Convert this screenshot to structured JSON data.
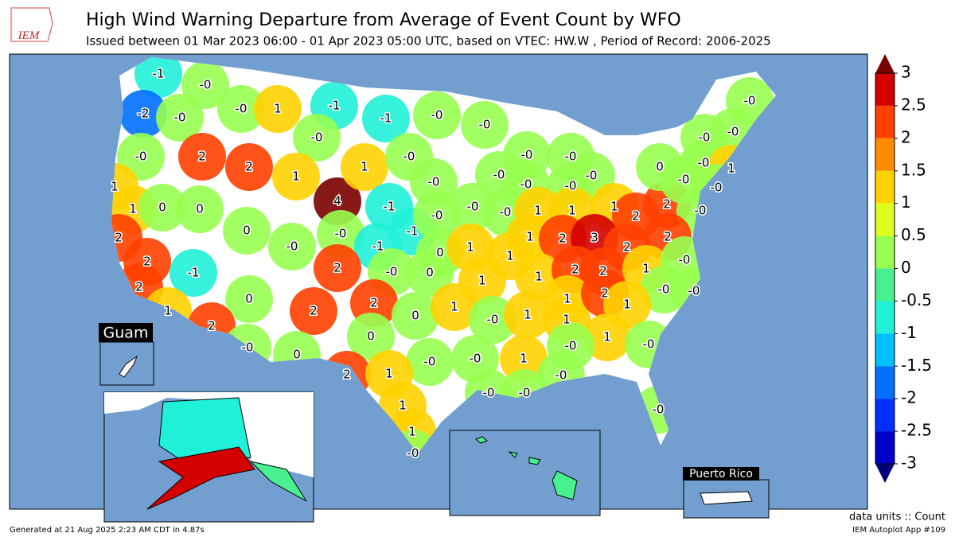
{
  "header": {
    "logo": "IEM",
    "title": "High Wind Warning Departure from Average of Event Count by WFO",
    "subtitle": "Issued between 01 Mar 2023 06:00 - 01 Apr 2023 05:00 UTC, based on VTEC: HW.W  , Period of Record: 2006-2025"
  },
  "map": {
    "labels": [
      "-1",
      "-2",
      "-0",
      "-0",
      "-0",
      "1",
      "-1",
      "-1",
      "-0",
      "-0",
      "-0",
      "-0",
      "2",
      "2",
      "1",
      "4",
      "1",
      "-0",
      "-0",
      "-0",
      "-0",
      "-0",
      "-0",
      "-0",
      "-0",
      "1",
      "1",
      "0",
      "0",
      "-1",
      "-1",
      "-0",
      "-0",
      "-0",
      "1",
      "1",
      "1",
      "2",
      "2",
      "-0",
      "2",
      "0",
      "-0",
      "-0",
      "-1",
      "0",
      "1",
      "1",
      "1",
      "2",
      "3",
      "2",
      "2",
      "2",
      "-1",
      "2",
      "-0",
      "0",
      "1",
      "1",
      "2",
      "2",
      "1",
      "-0",
      "2",
      "0",
      "2",
      "2",
      "0",
      "1",
      "-0",
      "-0",
      "1",
      "2",
      "-0",
      "0",
      "0",
      "-0",
      "1",
      "1",
      "1",
      "2",
      "1",
      "1",
      "-0",
      "-0",
      "-0",
      "-0",
      "1",
      "-0",
      "2",
      "1",
      "-0",
      "-0",
      "1",
      "-0",
      "1",
      "-0",
      "-1",
      "3",
      "-0",
      "-0",
      "-0",
      "-0",
      "-0",
      "-0",
      "0",
      "-0",
      "1",
      "-0"
    ],
    "insets": {
      "guam": "Guam",
      "puerto_rico": "Puerto Rico"
    }
  },
  "colorbar": {
    "ticks": [
      3,
      2.5,
      2,
      1.5,
      1,
      0.5,
      0,
      -0.5,
      -1,
      -1.5,
      -2,
      -2.5,
      -3
    ],
    "colors": [
      "#0000c8",
      "#0030ff",
      "#0070ff",
      "#00c0ff",
      "#20f0d8",
      "#48f090",
      "#98ff50",
      "#dcff1e",
      "#ffd200",
      "#ff8c00",
      "#ff4000",
      "#d40000"
    ],
    "under_color": "#00007a",
    "over_color": "#7a0000"
  },
  "footer": {
    "units": "data units :: Count",
    "generated": "Generated at 21 Aug 2025 2:23 AM CDT in 4.87s",
    "app": "IEM Autoplot App #109"
  }
}
